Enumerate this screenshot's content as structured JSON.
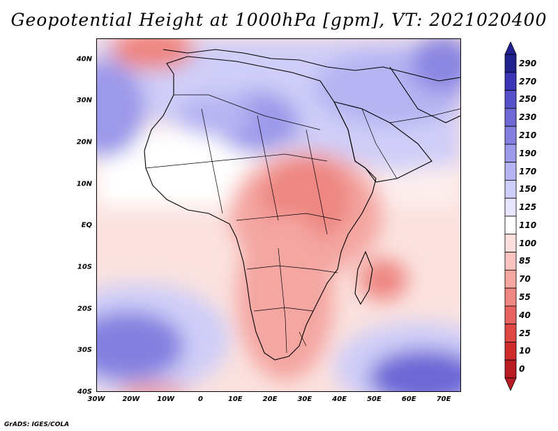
{
  "title": "Geopotential Height at 1000hPa [gpm], VT: 2021020400",
  "footer": "GrADS: IGES/COLA",
  "map": {
    "region": "Africa and Middle East",
    "variable": "Geopotential Height at 1000hPa",
    "units": "gpm",
    "valid_time": "2021020400",
    "lat_range": [
      -40,
      45
    ],
    "lon_range": [
      -30,
      75
    ],
    "y_ticks": [
      {
        "value": 40,
        "label": "40N"
      },
      {
        "value": 30,
        "label": "30N"
      },
      {
        "value": 20,
        "label": "20N"
      },
      {
        "value": 10,
        "label": "10N"
      },
      {
        "value": 0,
        "label": "EQ"
      },
      {
        "value": -10,
        "label": "10S"
      },
      {
        "value": -20,
        "label": "20S"
      },
      {
        "value": -30,
        "label": "30S"
      },
      {
        "value": -40,
        "label": "40S"
      }
    ],
    "x_ticks": [
      {
        "value": -30,
        "label": "30W"
      },
      {
        "value": -20,
        "label": "20W"
      },
      {
        "value": -10,
        "label": "10W"
      },
      {
        "value": 0,
        "label": "0"
      },
      {
        "value": 10,
        "label": "10E"
      },
      {
        "value": 20,
        "label": "20E"
      },
      {
        "value": 30,
        "label": "30E"
      },
      {
        "value": 40,
        "label": "40E"
      },
      {
        "value": 50,
        "label": "50E"
      },
      {
        "value": 60,
        "label": "60E"
      },
      {
        "value": 70,
        "label": "70E"
      }
    ]
  },
  "colorbar": {
    "labels": [
      "290",
      "270",
      "250",
      "230",
      "210",
      "190",
      "170",
      "150",
      "125",
      "110",
      "100",
      "85",
      "70",
      "55",
      "40",
      "25",
      "10",
      "0"
    ],
    "colors": [
      "#20208f",
      "#3b35b5",
      "#5650cb",
      "#6d68d6",
      "#8480e0",
      "#9c99ea",
      "#b6b4f2",
      "#cfcef8",
      "#e7e6fc",
      "#ffffff",
      "#fde0de",
      "#f9c4c0",
      "#f4a6a1",
      "#ee8681",
      "#e76460",
      "#df4745",
      "#cf2a2c",
      "#b81b22"
    ]
  },
  "features": [
    {
      "type": "low",
      "color": "#e8615b",
      "lat": 43,
      "lon": -20
    },
    {
      "type": "low",
      "color": "#e97f79",
      "lat": 8,
      "lon": 28
    },
    {
      "type": "low",
      "color": "#ea7d78",
      "lat": -14,
      "lon": 55
    },
    {
      "type": "high",
      "color": "#6d68d6",
      "lat": -27,
      "lon": -22
    },
    {
      "type": "high",
      "color": "#6d68d6",
      "lat": -34,
      "lon": 62
    },
    {
      "type": "high",
      "color": "#8480e0",
      "lat": 30,
      "lon": -30
    },
    {
      "type": "high",
      "color": "#9c99ea",
      "lat": 28,
      "lon": 12
    },
    {
      "type": "high",
      "color": "#8a86e2",
      "lat": 40,
      "lon": 72
    }
  ]
}
